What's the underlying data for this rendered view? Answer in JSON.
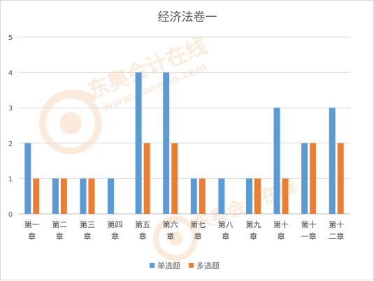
{
  "chart_data": {
    "type": "bar",
    "title": "经济法卷一",
    "categories": [
      "第一章",
      "第二章",
      "第三章",
      "第四章",
      "第五章",
      "第六章",
      "第七章",
      "第八章",
      "第九章",
      "第十章",
      "第十一章",
      "第十二章"
    ],
    "ylim": [
      0,
      5
    ],
    "yticks": [
      "0",
      "1",
      "2",
      "3",
      "4",
      "5"
    ],
    "grid": true,
    "legend_position": "bottom",
    "series": [
      {
        "name": "单选题",
        "values": [
          2,
          1,
          1,
          1,
          4,
          4,
          1,
          1,
          1,
          3,
          2,
          3
        ],
        "color": "#5b9bd5"
      },
      {
        "name": "多选题",
        "values": [
          1,
          1,
          1,
          0,
          2,
          2,
          1,
          0,
          1,
          1,
          2,
          2
        ],
        "color": "#ed7d31"
      }
    ]
  },
  "watermark": "东奥会计在线 www.dongao.com"
}
